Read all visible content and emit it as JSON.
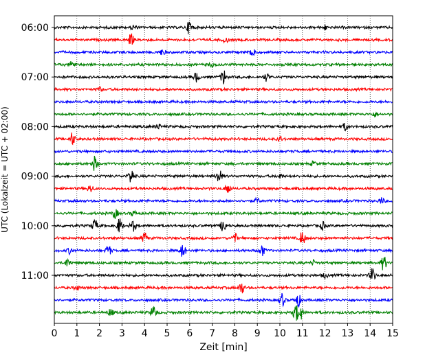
{
  "chart_data": {
    "type": "line",
    "title": "",
    "xlabel": "Zeit  [min]",
    "ylabel": "UTC (Lokalzeit = UTC + 02:00)",
    "xlim": [
      0,
      15
    ],
    "x_ticks": [
      "0",
      "1",
      "2",
      "3",
      "4",
      "5",
      "6",
      "7",
      "8",
      "9",
      "10",
      "11",
      "12",
      "13",
      "14",
      "15"
    ],
    "y_tick_labels": [
      "06:00",
      "07:00",
      "08:00",
      "09:00",
      "10:00",
      "11:00"
    ],
    "grid": "vertical-dotted",
    "trace_colors": [
      "#000000",
      "#ff0000",
      "#0000ff",
      "#008000"
    ],
    "traces": [
      {
        "start": "06:00",
        "events": [
          [
            6.0,
            1.0
          ],
          [
            3.5,
            0.3
          ],
          [
            12.0,
            0.3
          ]
        ]
      },
      {
        "start": "06:15",
        "events": [
          [
            3.4,
            0.8
          ],
          [
            7.6,
            0.3
          ]
        ]
      },
      {
        "start": "06:30",
        "events": [
          [
            8.8,
            0.9
          ],
          [
            4.8,
            0.4
          ]
        ]
      },
      {
        "start": "06:45",
        "events": [
          [
            0.8,
            0.5
          ],
          [
            7.0,
            0.3
          ]
        ]
      },
      {
        "start": "07:00",
        "events": [
          [
            7.5,
            1.0
          ],
          [
            6.3,
            0.6
          ],
          [
            9.4,
            0.5
          ]
        ]
      },
      {
        "start": "07:15",
        "events": [
          [
            2.0,
            0.3
          ]
        ]
      },
      {
        "start": "07:30",
        "events": []
      },
      {
        "start": "07:45",
        "events": [
          [
            14.2,
            0.3
          ]
        ]
      },
      {
        "start": "08:00",
        "events": [
          [
            12.9,
            0.5
          ],
          [
            4.6,
            0.3
          ]
        ]
      },
      {
        "start": "08:15",
        "events": [
          [
            0.8,
            0.8
          ],
          [
            10.0,
            0.3
          ]
        ]
      },
      {
        "start": "08:30",
        "events": []
      },
      {
        "start": "08:45",
        "events": [
          [
            1.8,
            1.0
          ],
          [
            11.5,
            0.3
          ]
        ]
      },
      {
        "start": "09:00",
        "events": [
          [
            3.4,
            1.0
          ],
          [
            7.3,
            1.0
          ],
          [
            10.0,
            0.3
          ]
        ]
      },
      {
        "start": "09:15",
        "events": [
          [
            7.7,
            0.7
          ],
          [
            1.6,
            0.5
          ]
        ]
      },
      {
        "start": "09:30",
        "events": [
          [
            14.5,
            0.4
          ],
          [
            9.0,
            0.3
          ]
        ]
      },
      {
        "start": "09:45",
        "events": [
          [
            2.7,
            0.6
          ],
          [
            3.5,
            0.3
          ]
        ]
      },
      {
        "start": "10:00",
        "events": [
          [
            7.5,
            1.0
          ],
          [
            2.9,
            1.0
          ],
          [
            1.8,
            0.8
          ],
          [
            3.5,
            0.7
          ],
          [
            11.9,
            0.5
          ]
        ]
      },
      {
        "start": "10:15",
        "events": [
          [
            11.0,
            1.0
          ],
          [
            4.0,
            0.7
          ],
          [
            8.0,
            0.6
          ]
        ]
      },
      {
        "start": "10:30",
        "events": [
          [
            5.7,
            1.0
          ],
          [
            2.4,
            0.7
          ],
          [
            9.2,
            0.8
          ],
          [
            0.7,
            0.4
          ]
        ]
      },
      {
        "start": "10:45",
        "events": [
          [
            14.6,
            1.0
          ],
          [
            0.6,
            0.6
          ],
          [
            11.5,
            0.3
          ]
        ]
      },
      {
        "start": "11:00",
        "events": [
          [
            14.1,
            1.0
          ],
          [
            12.0,
            0.3
          ]
        ]
      },
      {
        "start": "11:15",
        "events": [
          [
            8.3,
            0.8
          ],
          [
            1.0,
            0.3
          ]
        ]
      },
      {
        "start": "11:30",
        "events": [
          [
            10.1,
            0.8
          ],
          [
            10.8,
            0.9
          ]
        ]
      },
      {
        "start": "11:45",
        "events": [
          [
            10.7,
            1.0
          ],
          [
            10.9,
            1.0
          ],
          [
            4.4,
            0.9
          ],
          [
            2.5,
            0.5
          ]
        ]
      }
    ]
  }
}
